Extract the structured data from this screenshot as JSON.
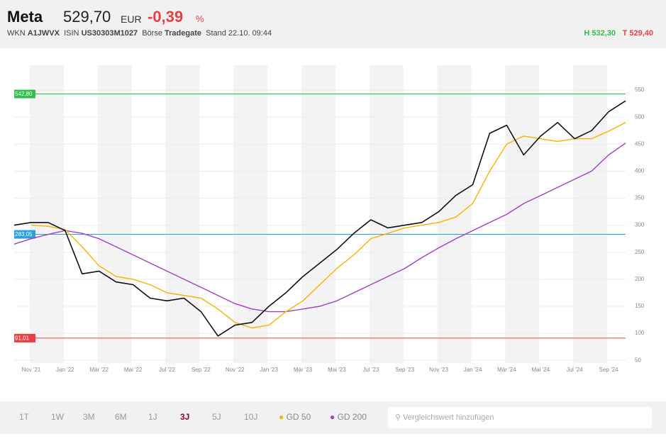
{
  "header": {
    "name": "Meta",
    "price": "529,70",
    "currency": "EUR",
    "change": "-0,39",
    "change_unit": "%",
    "wkn_label": "WKN",
    "wkn": "A1JWVX",
    "isin_label": "ISIN",
    "isin": "US30303M1027",
    "exchange_label": "Börse",
    "exchange": "Tradegate",
    "time": "Stand 22.10. 09:44",
    "high": "H 532,30",
    "low": "T 529,40"
  },
  "chart_data": {
    "type": "line",
    "categories": [
      null,
      "Nov '21",
      null,
      "Jan '22",
      null,
      "Mär '22",
      null,
      "Mai '22",
      null,
      "Jul '22",
      null,
      "Sep '22",
      null,
      "Nov '22",
      null,
      "Jan '23",
      null,
      "Mär '23",
      null,
      "Mai '23",
      null,
      "Jul '23",
      null,
      "Sep '23",
      null,
      "Nov '23",
      null,
      "Jan '24",
      null,
      "Mär '24",
      null,
      "Mai '24",
      null,
      "Jul '24",
      null,
      "Sep '24",
      null
    ],
    "series": [
      {
        "name": "Meta",
        "color": "#111111",
        "values": [
          300,
          305,
          305,
          290,
          210,
          215,
          195,
          190,
          165,
          160,
          165,
          140,
          95,
          115,
          120,
          150,
          175,
          205,
          230,
          255,
          285,
          310,
          295,
          300,
          305,
          325,
          355,
          375,
          470,
          485,
          430,
          465,
          490,
          460,
          475,
          510,
          530
        ]
      },
      {
        "name": "GD 50",
        "color": "#f5b400",
        "values": [
          null,
          300,
          298,
          292,
          260,
          225,
          205,
          200,
          190,
          175,
          170,
          165,
          145,
          120,
          110,
          115,
          140,
          160,
          190,
          220,
          245,
          275,
          285,
          295,
          300,
          305,
          315,
          340,
          400,
          450,
          465,
          460,
          455,
          460,
          460,
          474,
          490
        ]
      },
      {
        "name": "GD 200",
        "color": "#a040c0",
        "values": [
          265,
          275,
          283,
          290,
          285,
          275,
          260,
          245,
          230,
          215,
          200,
          185,
          170,
          155,
          145,
          140,
          140,
          145,
          150,
          160,
          175,
          190,
          205,
          220,
          240,
          258,
          275,
          290,
          305,
          320,
          340,
          355,
          370,
          385,
          400,
          430,
          452
        ]
      }
    ],
    "ylim": [
      45,
      596
    ],
    "yticks": [
      50,
      100,
      150,
      200,
      250,
      300,
      350,
      400,
      450,
      500,
      550
    ],
    "reference_lines": [
      {
        "value": 542.8,
        "label": "542,80",
        "color": "#2fbf4a"
      },
      {
        "value": 283.05,
        "label": "283,05",
        "color": "#2aa0e0"
      },
      {
        "value": 91.01,
        "label": "91,01",
        "color": "#e84040"
      }
    ],
    "grid": true
  },
  "controls": {
    "ranges": [
      "1T",
      "1W",
      "3M",
      "6M",
      "1J",
      "3J",
      "5J",
      "10J"
    ],
    "active_range": "3J",
    "search_placeholder": "Vergleichswert hinzufügen"
  }
}
